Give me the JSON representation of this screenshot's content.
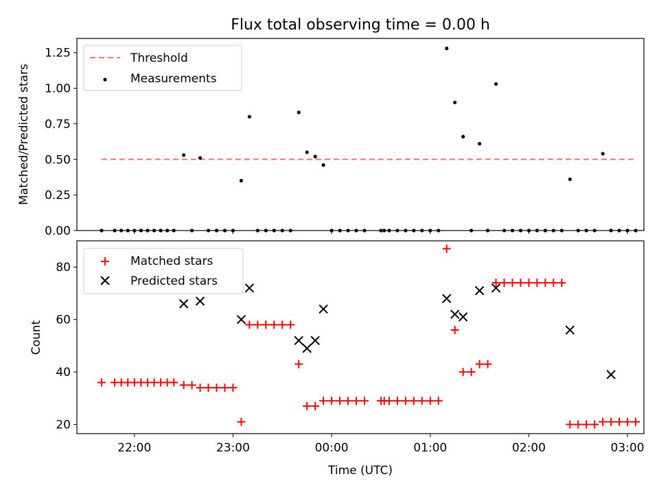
{
  "figure_title": "Flux total observing time = 0.00 h",
  "x_axis": {
    "label": "Time (UTC)",
    "ticks": [
      "22:00",
      "23:00",
      "00:00",
      "01:00",
      "02:00",
      "03:00"
    ]
  },
  "colors": {
    "threshold": "#ff7070",
    "measurements": "#000000",
    "matched": "#ff0000",
    "predicted": "#000000"
  },
  "chart_data": [
    {
      "type": "scatter",
      "title": "Flux total observing time = 0.00 h",
      "xlabel": "",
      "ylabel": "Matched/Predicted stars",
      "ylim": [
        0,
        1.35
      ],
      "yticks": [
        "0.00",
        "0.25",
        "0.50",
        "0.75",
        "1.00",
        "1.25"
      ],
      "grid": false,
      "legend_position": "upper-left",
      "threshold": {
        "name": "Threshold",
        "value": 0.5,
        "x_start": "21:40",
        "x_end": "03:05"
      },
      "series": [
        {
          "name": "Measurements",
          "x": [
            "21:40",
            "21:48",
            "21:52",
            "21:56",
            "22:00",
            "22:04",
            "22:08",
            "22:12",
            "22:16",
            "22:20",
            "22:24",
            "22:30",
            "22:35",
            "22:40",
            "22:45",
            "22:50",
            "22:55",
            "23:00",
            "23:05",
            "23:10",
            "23:15",
            "23:20",
            "23:25",
            "23:30",
            "23:35",
            "23:40",
            "23:45",
            "23:50",
            "23:55",
            "00:00",
            "00:05",
            "00:10",
            "00:15",
            "00:20",
            "00:30",
            "00:32",
            "00:35",
            "00:40",
            "00:45",
            "00:50",
            "00:55",
            "01:00",
            "01:05",
            "01:10",
            "01:15",
            "01:20",
            "01:25",
            "01:30",
            "01:35",
            "01:40",
            "01:45",
            "01:50",
            "01:55",
            "02:00",
            "02:05",
            "02:10",
            "02:15",
            "02:20",
            "02:25",
            "02:30",
            "02:35",
            "02:40",
            "02:45",
            "02:50",
            "02:55",
            "03:00",
            "03:05"
          ],
          "y": [
            0,
            0,
            0,
            0,
            0,
            0,
            0,
            0,
            0,
            0,
            0,
            0.53,
            0,
            0.51,
            0,
            0,
            0,
            0,
            0.35,
            0.8,
            0,
            0,
            0,
            0,
            0,
            0.83,
            0.55,
            0.52,
            0.46,
            0,
            0,
            0,
            0,
            0,
            0,
            0,
            0,
            0,
            0,
            0,
            0,
            0,
            0,
            1.28,
            0.9,
            0.66,
            0,
            0.61,
            0,
            1.03,
            0,
            0,
            0,
            0,
            0,
            0,
            0,
            0,
            0.36,
            0,
            0,
            0,
            0.54,
            0,
            0,
            0,
            0
          ]
        }
      ]
    },
    {
      "type": "scatter",
      "title": "",
      "xlabel": "Time (UTC)",
      "ylabel": "Count",
      "ylim": [
        16.5,
        90
      ],
      "yticks": [
        "20",
        "40",
        "60",
        "80"
      ],
      "grid": false,
      "legend_position": "upper-left",
      "series": [
        {
          "name": "Matched stars",
          "x": [
            "21:40",
            "21:48",
            "21:52",
            "21:56",
            "22:00",
            "22:04",
            "22:08",
            "22:12",
            "22:16",
            "22:20",
            "22:24",
            "22:30",
            "22:35",
            "22:40",
            "22:45",
            "22:50",
            "22:55",
            "23:00",
            "23:05",
            "23:10",
            "23:15",
            "23:20",
            "23:25",
            "23:30",
            "23:35",
            "23:40",
            "23:45",
            "23:50",
            "23:55",
            "00:00",
            "00:05",
            "00:10",
            "00:15",
            "00:20",
            "00:30",
            "00:32",
            "00:35",
            "00:40",
            "00:45",
            "00:50",
            "00:55",
            "01:00",
            "01:05",
            "01:10",
            "01:15",
            "01:20",
            "01:25",
            "01:30",
            "01:35",
            "01:40",
            "01:45",
            "01:50",
            "01:55",
            "02:00",
            "02:05",
            "02:10",
            "02:15",
            "02:20",
            "02:25",
            "02:30",
            "02:35",
            "02:40",
            "02:45",
            "02:50",
            "02:55",
            "03:00",
            "03:05"
          ],
          "y": [
            36,
            36,
            36,
            36,
            36,
            36,
            36,
            36,
            36,
            36,
            36,
            35,
            35,
            34,
            34,
            34,
            34,
            34,
            21,
            58,
            58,
            58,
            58,
            58,
            58,
            43,
            27,
            27,
            29,
            29,
            29,
            29,
            29,
            29,
            29,
            29,
            29,
            29,
            29,
            29,
            29,
            29,
            29,
            87,
            56,
            40,
            40,
            43,
            43,
            74,
            74,
            74,
            74,
            74,
            74,
            74,
            74,
            74,
            20,
            20,
            20,
            20,
            21,
            21,
            21,
            21,
            21
          ]
        },
        {
          "name": "Predicted stars",
          "x": [
            "22:30",
            "22:40",
            "23:05",
            "23:10",
            "23:40",
            "23:45",
            "23:50",
            "23:55",
            "01:10",
            "01:15",
            "01:20",
            "01:30",
            "01:40",
            "02:25",
            "02:50"
          ],
          "y": [
            66,
            67,
            60,
            72,
            52,
            49,
            52,
            64,
            68,
            62,
            61,
            71,
            72,
            56,
            39
          ]
        }
      ]
    }
  ]
}
